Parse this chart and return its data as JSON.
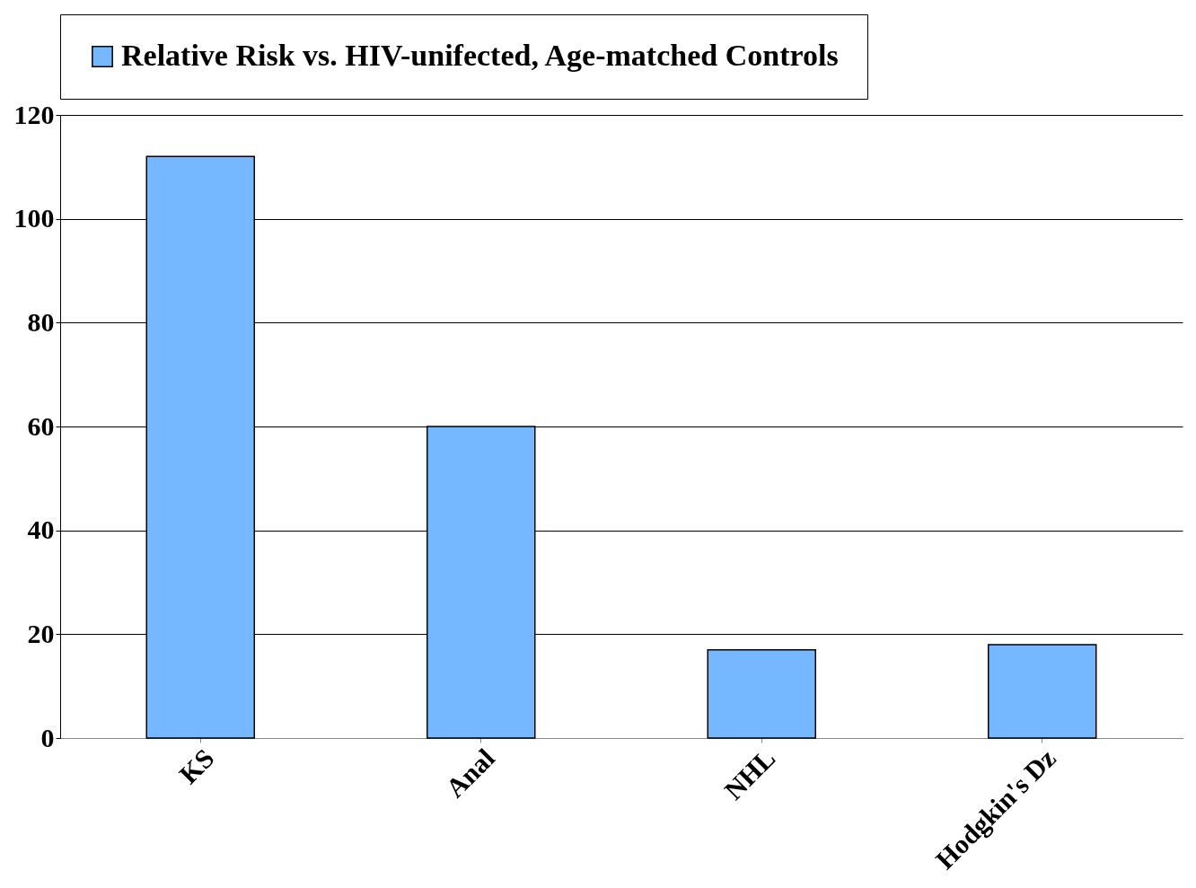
{
  "chart_data": {
    "type": "bar",
    "categories": [
      "KS",
      "Anal",
      "NHL",
      "Hodgkin's Dz"
    ],
    "series": [
      {
        "name": "Relative Risk vs. HIV-unifected, Age-matched Controls",
        "color": "#75b8ff",
        "values": [
          112,
          60,
          17,
          18
        ]
      }
    ],
    "ylim": [
      0,
      120
    ],
    "yticks": [
      0,
      20,
      40,
      60,
      80,
      100,
      120
    ],
    "grid": "y",
    "legend": "top"
  }
}
